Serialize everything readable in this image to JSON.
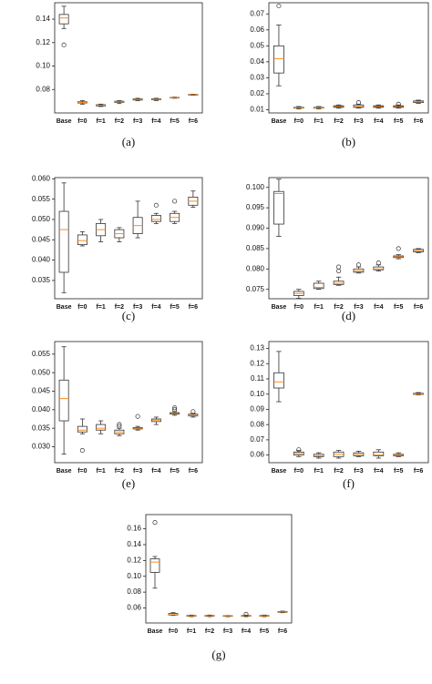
{
  "chart_data": [
    {
      "type": "box",
      "caption": "(a)",
      "categories": [
        "Base",
        "f=0",
        "f=1",
        "f=2",
        "f=3",
        "f=4",
        "f=5",
        "f=6"
      ],
      "ylim": [
        0.06,
        0.154
      ],
      "yticks": [
        0.08,
        {
          "value": 0.1,
          "label": "0.10"
        },
        0.12,
        0.14
      ],
      "box_color": "#333333",
      "median_color": "#ff8c1a",
      "boxes": [
        {
          "whislo": 0.132,
          "q1": 0.136,
          "med": 0.141,
          "q3": 0.144,
          "whishi": 0.151,
          "fliers": [
            0.118
          ]
        },
        {
          "whislo": 0.0675,
          "q1": 0.0685,
          "med": 0.069,
          "q3": 0.0695,
          "whishi": 0.0705,
          "fliers": []
        },
        {
          "whislo": 0.0655,
          "q1": 0.066,
          "med": 0.0665,
          "q3": 0.067,
          "whishi": 0.0675,
          "fliers": []
        },
        {
          "whislo": 0.068,
          "q1": 0.069,
          "med": 0.0695,
          "q3": 0.07,
          "whishi": 0.0705,
          "fliers": []
        },
        {
          "whislo": 0.0705,
          "q1": 0.071,
          "med": 0.0715,
          "q3": 0.072,
          "whishi": 0.0725,
          "fliers": []
        },
        {
          "whislo": 0.0705,
          "q1": 0.0712,
          "med": 0.0715,
          "q3": 0.072,
          "whishi": 0.0725,
          "fliers": []
        },
        {
          "whislo": 0.0725,
          "q1": 0.0728,
          "med": 0.073,
          "q3": 0.0732,
          "whishi": 0.0735,
          "fliers": []
        },
        {
          "whislo": 0.075,
          "q1": 0.0752,
          "med": 0.0755,
          "q3": 0.0758,
          "whishi": 0.076,
          "fliers": []
        }
      ]
    },
    {
      "type": "box",
      "caption": "(b)",
      "categories": [
        "Base",
        "f=0",
        "f=1",
        "f=2",
        "f=3",
        "f=4",
        "f=5",
        "f=6"
      ],
      "ylim": [
        0.008,
        0.077
      ],
      "yticks": [
        0.01,
        0.02,
        0.03,
        0.04,
        0.05,
        0.06,
        0.07
      ],
      "box_color": "#333333",
      "median_color": "#ff8c1a",
      "boxes": [
        {
          "whislo": 0.025,
          "q1": 0.033,
          "med": 0.042,
          "q3": 0.05,
          "whishi": 0.063,
          "fliers": [
            0.075
          ]
        },
        {
          "whislo": 0.0105,
          "q1": 0.011,
          "med": 0.0112,
          "q3": 0.0115,
          "whishi": 0.012,
          "fliers": []
        },
        {
          "whislo": 0.0105,
          "q1": 0.011,
          "med": 0.0112,
          "q3": 0.0115,
          "whishi": 0.012,
          "fliers": []
        },
        {
          "whislo": 0.011,
          "q1": 0.0115,
          "med": 0.012,
          "q3": 0.0125,
          "whishi": 0.013,
          "fliers": []
        },
        {
          "whislo": 0.011,
          "q1": 0.0115,
          "med": 0.012,
          "q3": 0.013,
          "whishi": 0.0135,
          "fliers": [
            0.0145
          ]
        },
        {
          "whislo": 0.011,
          "q1": 0.0115,
          "med": 0.012,
          "q3": 0.0125,
          "whishi": 0.013,
          "fliers": []
        },
        {
          "whislo": 0.011,
          "q1": 0.0115,
          "med": 0.012,
          "q3": 0.0125,
          "whishi": 0.013,
          "fliers": [
            0.0135
          ]
        },
        {
          "whislo": 0.014,
          "q1": 0.0145,
          "med": 0.015,
          "q3": 0.0155,
          "whishi": 0.016,
          "fliers": []
        }
      ]
    },
    {
      "type": "box",
      "caption": "(c)",
      "categories": [
        "Base",
        "f=0",
        "f=1",
        "f=2",
        "f=3",
        "f=4",
        "f=5",
        "f=6"
      ],
      "ylim": [
        0.0305,
        0.0603
      ],
      "yticks": [
        0.035,
        {
          "value": 0.04,
          "label": "0.040"
        },
        0.045,
        {
          "value": 0.05,
          "label": "0.050"
        },
        0.055,
        {
          "value": 0.06,
          "label": "0.060"
        }
      ],
      "box_color": "#333333",
      "median_color": "#ff8c1a",
      "boxes": [
        {
          "whislo": 0.032,
          "q1": 0.037,
          "med": 0.0475,
          "q3": 0.052,
          "whishi": 0.059,
          "fliers": []
        },
        {
          "whislo": 0.0435,
          "q1": 0.0438,
          "med": 0.0448,
          "q3": 0.0462,
          "whishi": 0.047,
          "fliers": []
        },
        {
          "whislo": 0.0445,
          "q1": 0.046,
          "med": 0.0475,
          "q3": 0.049,
          "whishi": 0.05,
          "fliers": []
        },
        {
          "whislo": 0.0445,
          "q1": 0.0455,
          "med": 0.0465,
          "q3": 0.0475,
          "whishi": 0.048,
          "fliers": []
        },
        {
          "whislo": 0.0455,
          "q1": 0.0465,
          "med": 0.0485,
          "q3": 0.0505,
          "whishi": 0.0545,
          "fliers": []
        },
        {
          "whislo": 0.049,
          "q1": 0.0495,
          "med": 0.05,
          "q3": 0.051,
          "whishi": 0.0515,
          "fliers": [
            0.0535
          ]
        },
        {
          "whislo": 0.049,
          "q1": 0.0495,
          "med": 0.0505,
          "q3": 0.0515,
          "whishi": 0.052,
          "fliers": [
            0.0545
          ]
        },
        {
          "whislo": 0.053,
          "q1": 0.0535,
          "med": 0.0545,
          "q3": 0.0555,
          "whishi": 0.057,
          "fliers": []
        }
      ]
    },
    {
      "type": "box",
      "caption": "(d)",
      "categories": [
        "Base",
        "f=0",
        "f=1",
        "f=2",
        "f=3",
        "f=4",
        "f=5",
        "f=6"
      ],
      "ylim": [
        0.0727,
        0.1024
      ],
      "yticks": [
        0.075,
        {
          "value": 0.08,
          "label": "0.080"
        },
        0.085,
        {
          "value": 0.09,
          "label": "0.090"
        },
        0.095,
        {
          "value": 0.1,
          "label": "0.100"
        }
      ],
      "box_color": "#333333",
      "median_color": "#ff8c1a",
      "boxes": [
        {
          "whislo": 0.088,
          "q1": 0.091,
          "med": 0.0985,
          "q3": 0.099,
          "whishi": 0.102,
          "fliers": []
        },
        {
          "whislo": 0.0728,
          "q1": 0.0735,
          "med": 0.074,
          "q3": 0.0745,
          "whishi": 0.075,
          "fliers": []
        },
        {
          "whislo": 0.075,
          "q1": 0.0752,
          "med": 0.0755,
          "q3": 0.0765,
          "whishi": 0.077,
          "fliers": []
        },
        {
          "whislo": 0.076,
          "q1": 0.0762,
          "med": 0.0765,
          "q3": 0.077,
          "whishi": 0.078,
          "fliers": [
            0.0795,
            0.0805
          ]
        },
        {
          "whislo": 0.079,
          "q1": 0.0792,
          "med": 0.0795,
          "q3": 0.08,
          "whishi": 0.0805,
          "fliers": [
            0.081
          ]
        },
        {
          "whislo": 0.0795,
          "q1": 0.0798,
          "med": 0.08,
          "q3": 0.0805,
          "whishi": 0.081,
          "fliers": [
            0.0815
          ]
        },
        {
          "whislo": 0.0825,
          "q1": 0.0828,
          "med": 0.083,
          "q3": 0.0832,
          "whishi": 0.0835,
          "fliers": [
            0.085
          ]
        },
        {
          "whislo": 0.084,
          "q1": 0.0842,
          "med": 0.0845,
          "q3": 0.0848,
          "whishi": 0.085,
          "fliers": []
        }
      ]
    },
    {
      "type": "box",
      "caption": "(e)",
      "categories": [
        "Base",
        "f=0",
        "f=1",
        "f=2",
        "f=3",
        "f=4",
        "f=5",
        "f=6"
      ],
      "ylim": [
        0.0257,
        0.0584
      ],
      "yticks": [
        {
          "value": 0.03,
          "label": "0.030"
        },
        0.035,
        {
          "value": 0.04,
          "label": "0.040"
        },
        0.045,
        {
          "value": 0.05,
          "label": "0.050"
        },
        0.055
      ],
      "box_color": "#333333",
      "median_color": "#ff8c1a",
      "boxes": [
        {
          "whislo": 0.028,
          "q1": 0.037,
          "med": 0.043,
          "q3": 0.048,
          "whishi": 0.057,
          "fliers": []
        },
        {
          "whislo": 0.0335,
          "q1": 0.034,
          "med": 0.0345,
          "q3": 0.0355,
          "whishi": 0.0375,
          "fliers": [
            0.029
          ]
        },
        {
          "whislo": 0.0335,
          "q1": 0.0345,
          "med": 0.035,
          "q3": 0.036,
          "whishi": 0.037,
          "fliers": []
        },
        {
          "whislo": 0.033,
          "q1": 0.0335,
          "med": 0.034,
          "q3": 0.0345,
          "whishi": 0.035,
          "fliers": [
            0.0355,
            0.036
          ]
        },
        {
          "whislo": 0.0345,
          "q1": 0.0348,
          "med": 0.035,
          "q3": 0.0352,
          "whishi": 0.0355,
          "fliers": [
            0.0382
          ]
        },
        {
          "whislo": 0.036,
          "q1": 0.0368,
          "med": 0.0372,
          "q3": 0.0375,
          "whishi": 0.038,
          "fliers": []
        },
        {
          "whislo": 0.0385,
          "q1": 0.0388,
          "med": 0.039,
          "q3": 0.0392,
          "whishi": 0.0395,
          "fliers": [
            0.04,
            0.0405
          ]
        },
        {
          "whislo": 0.038,
          "q1": 0.0383,
          "med": 0.0385,
          "q3": 0.0388,
          "whishi": 0.039,
          "fliers": [
            0.0395
          ]
        }
      ]
    },
    {
      "type": "box",
      "caption": "(f)",
      "categories": [
        "Base",
        "f=0",
        "f=1",
        "f=2",
        "f=3",
        "f=4",
        "f=5",
        "f=6"
      ],
      "ylim": [
        0.055,
        0.1345
      ],
      "yticks": [
        0.06,
        0.07,
        0.08,
        0.09,
        {
          "value": 0.1,
          "label": "0.10"
        },
        0.11,
        0.12,
        0.13
      ],
      "box_color": "#333333",
      "median_color": "#ff8c1a",
      "boxes": [
        {
          "whislo": 0.095,
          "q1": 0.104,
          "med": 0.108,
          "q3": 0.114,
          "whishi": 0.128,
          "fliers": []
        },
        {
          "whislo": 0.059,
          "q1": 0.06,
          "med": 0.061,
          "q3": 0.062,
          "whishi": 0.063,
          "fliers": [
            0.0635
          ]
        },
        {
          "whislo": 0.058,
          "q1": 0.059,
          "med": 0.0595,
          "q3": 0.0605,
          "whishi": 0.0615,
          "fliers": []
        },
        {
          "whislo": 0.058,
          "q1": 0.059,
          "med": 0.0605,
          "q3": 0.062,
          "whishi": 0.063,
          "fliers": []
        },
        {
          "whislo": 0.059,
          "q1": 0.0595,
          "med": 0.0605,
          "q3": 0.0615,
          "whishi": 0.0625,
          "fliers": []
        },
        {
          "whislo": 0.058,
          "q1": 0.0595,
          "med": 0.06,
          "q3": 0.062,
          "whishi": 0.0635,
          "fliers": []
        },
        {
          "whislo": 0.059,
          "q1": 0.0595,
          "med": 0.06,
          "q3": 0.0605,
          "whishi": 0.0615,
          "fliers": []
        },
        {
          "whislo": 0.0995,
          "q1": 0.0998,
          "med": 0.1,
          "q3": 0.1005,
          "whishi": 0.101,
          "fliers": []
        }
      ]
    },
    {
      "type": "box",
      "caption": "(g)",
      "categories": [
        "Base",
        "f=0",
        "f=1",
        "f=2",
        "f=3",
        "f=4",
        "f=5",
        "f=6"
      ],
      "ylim": [
        0.041,
        0.178
      ],
      "yticks": [
        0.06,
        0.08,
        {
          "value": 0.1,
          "label": "0.10"
        },
        0.12,
        0.14,
        0.16
      ],
      "box_color": "#333333",
      "median_color": "#ff8c1a",
      "boxes": [
        {
          "whislo": 0.085,
          "q1": 0.105,
          "med": 0.118,
          "q3": 0.122,
          "whishi": 0.125,
          "fliers": [
            0.168
          ]
        },
        {
          "whislo": 0.0505,
          "q1": 0.051,
          "med": 0.0515,
          "q3": 0.053,
          "whishi": 0.054,
          "fliers": []
        },
        {
          "whislo": 0.049,
          "q1": 0.0495,
          "med": 0.05,
          "q3": 0.0505,
          "whishi": 0.051,
          "fliers": []
        },
        {
          "whislo": 0.049,
          "q1": 0.0495,
          "med": 0.05,
          "q3": 0.0505,
          "whishi": 0.051,
          "fliers": []
        },
        {
          "whislo": 0.049,
          "q1": 0.0495,
          "med": 0.05,
          "q3": 0.0502,
          "whishi": 0.0505,
          "fliers": []
        },
        {
          "whislo": 0.049,
          "q1": 0.0495,
          "med": 0.05,
          "q3": 0.0505,
          "whishi": 0.051,
          "fliers": [
            0.052
          ]
        },
        {
          "whislo": 0.049,
          "q1": 0.0495,
          "med": 0.05,
          "q3": 0.0505,
          "whishi": 0.051,
          "fliers": []
        },
        {
          "whislo": 0.054,
          "q1": 0.0545,
          "med": 0.055,
          "q3": 0.0555,
          "whishi": 0.056,
          "fliers": []
        }
      ]
    }
  ]
}
